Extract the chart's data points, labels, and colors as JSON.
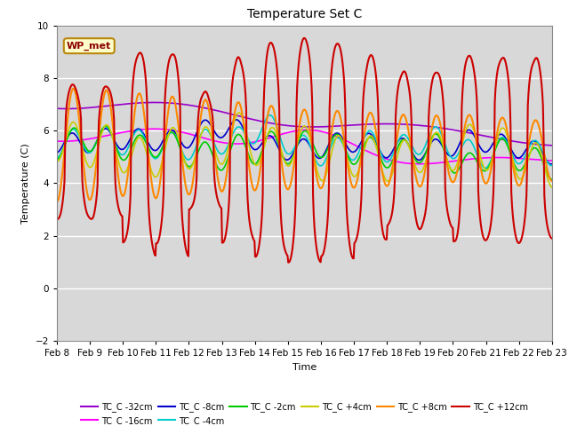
{
  "title": "Temperature Set C",
  "xlabel": "Time",
  "ylabel": "Temperature (C)",
  "ylim": [
    -2,
    10
  ],
  "background_color": "#d8d8d8",
  "annotation_text": "WP_met",
  "annotation_box_color": "#ffffcc",
  "annotation_box_edge": "#b8860b",
  "series": {
    "TC_C -32cm": {
      "color": "#9900cc",
      "lw": 1.2
    },
    "TC_C -16cm": {
      "color": "#ff00ff",
      "lw": 1.2
    },
    "TC_C -8cm": {
      "color": "#0000cc",
      "lw": 1.2
    },
    "TC_C -4cm": {
      "color": "#00cccc",
      "lw": 1.2
    },
    "TC_C -2cm": {
      "color": "#00cc00",
      "lw": 1.2
    },
    "TC_C +4cm": {
      "color": "#cccc00",
      "lw": 1.2
    },
    "TC_C +8cm": {
      "color": "#ff8800",
      "lw": 1.5
    },
    "TC_C +12cm": {
      "color": "#cc0000",
      "lw": 1.5
    }
  },
  "xtick_labels": [
    "Feb 8",
    "Feb 9",
    "Feb 10",
    "Feb 11",
    "Feb 12",
    "Feb 13",
    "Feb 14",
    "Feb 15",
    "Feb 16",
    "Feb 17",
    "Feb 18",
    "Feb 19",
    "Feb 20",
    "Feb 21",
    "Feb 22",
    "Feb 23"
  ],
  "ytick_values": [
    -2,
    0,
    2,
    4,
    6,
    8,
    10
  ]
}
